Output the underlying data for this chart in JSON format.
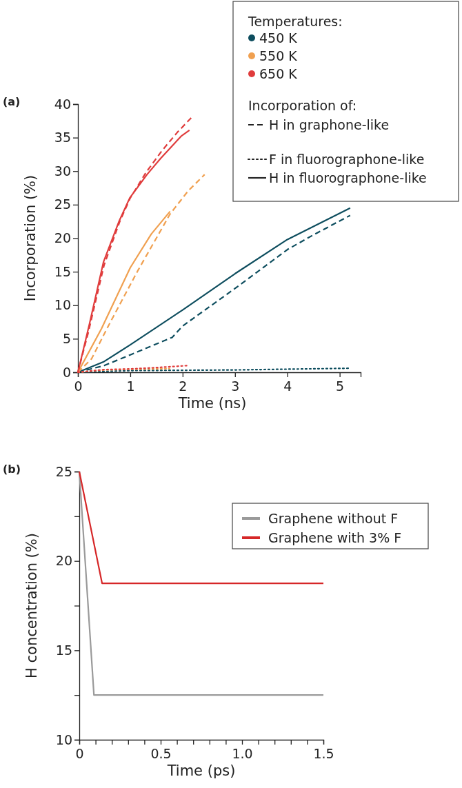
{
  "chart_data": [
    {
      "type": "line",
      "title": "(a)",
      "xlabel": "Time (ns)",
      "ylabel": "Incorporation (%)",
      "xlim": [
        0,
        5.4
      ],
      "ylim": [
        0,
        40
      ],
      "xticks": [
        0,
        1,
        2,
        3,
        4,
        5
      ],
      "yticks": [
        0,
        5,
        10,
        15,
        20,
        25,
        30,
        35,
        40
      ],
      "grid": false,
      "annotations": [
        "Temperatures:",
        "450 K",
        "550 K",
        "650 K",
        "Incorporation of:",
        "H in graphone-like",
        "F in fluorographone-like",
        "H in fluorographone-like"
      ],
      "series": [
        {
          "color": "#0d4d5e",
          "line_style": "dashed",
          "x": [
            0,
            0.5,
            1,
            1.8,
            2,
            3,
            4,
            4.5,
            5.2
          ],
          "values": [
            0,
            1,
            2.6,
            5.2,
            6.9,
            12.5,
            18.3,
            20.5,
            23.4
          ]
        },
        {
          "color": "#0d4d5e",
          "line_style": "dotted",
          "x": [
            0,
            1,
            3,
            5.2
          ],
          "values": [
            0,
            0.25,
            0.35,
            0.6
          ]
        },
        {
          "color": "#0d4d5e",
          "line_style": "solid",
          "x": [
            0,
            0.5,
            1,
            2,
            3,
            4,
            5.2
          ],
          "values": [
            0,
            1.6,
            4.1,
            9.3,
            14.7,
            19.8,
            24.5
          ]
        },
        {
          "color": "#f0a050",
          "line_style": "dashed",
          "x": [
            0,
            0.26,
            0.58,
            1.14,
            1.76,
            2.1,
            2.42
          ],
          "values": [
            0,
            2,
            6.9,
            15.1,
            23.6,
            27,
            29.5
          ]
        },
        {
          "color": "#f0a050",
          "line_style": "dotted",
          "x": [
            0,
            0.5,
            1,
            1.75
          ],
          "values": [
            0,
            0.35,
            0.45,
            0.55
          ]
        },
        {
          "color": "#f0a050",
          "line_style": "solid",
          "x": [
            0,
            0.45,
            1,
            1.4,
            1.76
          ],
          "values": [
            0,
            6.5,
            15.6,
            20.6,
            24
          ]
        },
        {
          "color": "#e03c3c",
          "line_style": "dashed",
          "x": [
            0,
            0.2,
            0.5,
            0.8,
            1,
            1.3,
            1.6,
            1.9,
            2.17
          ],
          "values": [
            0,
            6,
            16,
            22.5,
            26,
            29.8,
            33,
            35.8,
            38
          ]
        },
        {
          "color": "#e03c3c",
          "line_style": "dotted",
          "x": [
            0,
            0.5,
            1,
            1.5,
            2.1
          ],
          "values": [
            0,
            0.4,
            0.5,
            0.7,
            1
          ]
        },
        {
          "color": "#e03c3c",
          "line_style": "solid",
          "x": [
            0,
            0.22,
            0.49,
            0.79,
            0.99,
            1.32,
            1.58,
            1.97,
            2.13
          ],
          "values": [
            0,
            7.2,
            16.5,
            22.6,
            26,
            29.5,
            31.9,
            35.2,
            36.1
          ]
        }
      ]
    },
    {
      "type": "line",
      "title": "(b)",
      "xlabel": "Time (ps)",
      "ylabel": "H concentration (%)",
      "xlim": [
        0,
        1.5
      ],
      "ylim": [
        10,
        25
      ],
      "xticks": [
        0,
        {
          "value": 0.1,
          "label": null
        },
        {
          "value": 0.2,
          "label": null
        },
        {
          "value": 0.3,
          "label": null
        },
        {
          "value": 0.4,
          "label": null
        },
        0.5,
        {
          "value": 0.6,
          "label": null
        },
        {
          "value": 0.7,
          "label": null
        },
        {
          "value": 0.8,
          "label": null
        },
        {
          "value": 0.9,
          "label": null
        },
        {
          "value": 1,
          "label": "1.0"
        },
        {
          "value": 1.1,
          "label": null
        },
        {
          "value": 1.2,
          "label": null
        },
        {
          "value": 1.3,
          "label": null
        },
        {
          "value": 1.4,
          "label": null
        },
        1.5
      ],
      "yticks": [
        10,
        {
          "value": 12.5,
          "label": null
        },
        15,
        {
          "value": 17.5,
          "label": null
        },
        20,
        {
          "value": 22.5,
          "label": null
        },
        25
      ],
      "legend": "top right",
      "grid": false,
      "series": [
        {
          "name": "Graphene without F",
          "color": "#9a9a9a",
          "line_style": "solid",
          "x": [
            0,
            0.09,
            1.5
          ],
          "values": [
            25,
            12.5,
            12.5
          ]
        },
        {
          "name": "Graphene with 3% F",
          "color": "#d62728",
          "line_style": "solid",
          "x": [
            0,
            0.14,
            1.5
          ],
          "values": [
            25,
            18.75,
            18.75
          ]
        }
      ]
    }
  ]
}
